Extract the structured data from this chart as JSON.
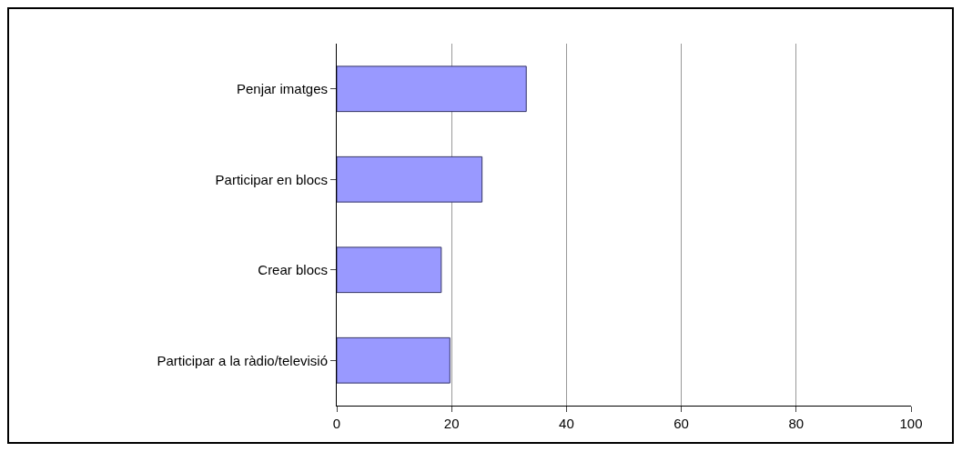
{
  "chart_data": {
    "type": "bar",
    "orientation": "horizontal",
    "categories": [
      "Penjar imatges",
      "Participar en blocs",
      "Crear blocs",
      "Participar a la ràdio/televisió"
    ],
    "values": [
      33,
      25.3,
      18.2,
      19.7
    ],
    "color": "#9999ff",
    "xlim": [
      0,
      100
    ],
    "xticks": [
      0,
      20,
      40,
      60,
      80,
      100
    ],
    "grid": "x"
  }
}
